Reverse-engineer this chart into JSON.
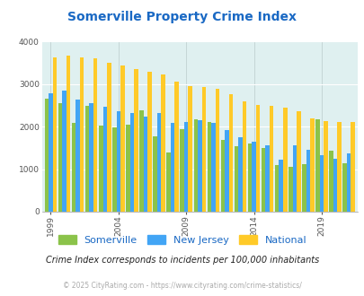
{
  "title": "Somerville Property Crime Index",
  "years": [
    1999,
    2000,
    2001,
    2002,
    2003,
    2004,
    2005,
    2006,
    2007,
    2008,
    2009,
    2010,
    2011,
    2012,
    2013,
    2014,
    2015,
    2016,
    2017,
    2018,
    2019,
    2020,
    2021
  ],
  "somerville": [
    2650,
    2560,
    2080,
    2490,
    2030,
    1990,
    2040,
    2390,
    1760,
    1380,
    1930,
    2160,
    2110,
    1680,
    1530,
    1600,
    1490,
    1100,
    1050,
    1120,
    2170,
    1440,
    1130
  ],
  "new_jersey": [
    2780,
    2840,
    2640,
    2540,
    2460,
    2350,
    2320,
    2230,
    2310,
    2080,
    2100,
    2140,
    2080,
    1910,
    1740,
    1650,
    1560,
    1220,
    1560,
    1450,
    1330,
    1240,
    1360
  ],
  "national": [
    3620,
    3670,
    3630,
    3600,
    3500,
    3440,
    3360,
    3280,
    3220,
    3050,
    2950,
    2920,
    2880,
    2760,
    2590,
    2510,
    2490,
    2450,
    2360,
    2200,
    2130,
    2100,
    2110
  ],
  "somerville_color": "#8bc34a",
  "new_jersey_color": "#42a5f5",
  "national_color": "#ffca28",
  "bg_color": "#dff0f0",
  "title_color": "#1a69c4",
  "ylabel_max": 4000,
  "subtitle": "Crime Index corresponds to incidents per 100,000 inhabitants",
  "footer": "© 2025 CityRating.com - https://www.cityrating.com/crime-statistics/",
  "legend_labels": [
    "Somerville",
    "New Jersey",
    "National"
  ],
  "xlabel_ticks": [
    1999,
    2004,
    2009,
    2014,
    2019
  ]
}
